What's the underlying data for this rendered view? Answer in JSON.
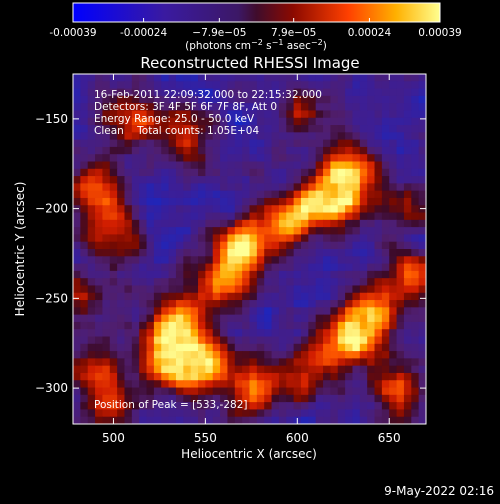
{
  "chart_data": {
    "type": "heatmap",
    "title": "Reconstructed RHESSI Image",
    "xlabel": "Heliocentric X (arcsec)",
    "ylabel": "Heliocentric Y (arcsec)",
    "xlim": [
      478,
      670
    ],
    "ylim": [
      -320,
      -125
    ],
    "x_ticks": [
      500,
      550,
      600,
      650
    ],
    "y_ticks": [
      -150,
      -200,
      -250,
      -300
    ],
    "colorbar": {
      "min": -0.00039,
      "max": 0.00039,
      "tick_values": [
        -0.00039,
        -0.00024,
        -7.9e-05,
        7.9e-05,
        0.00024,
        0.00039
      ],
      "tick_labels": [
        "-0.00039",
        "-0.00024",
        "−7.9e−05",
        "7.9e−05",
        "0.00024",
        "0.00039"
      ],
      "units_prefix": "(photons cm",
      "units_exp1": "−2",
      "units_mid1": " s",
      "units_exp2": "−1",
      "units_mid2": " asec",
      "units_exp3": "−2",
      "units_suffix": ")"
    },
    "annotations": {
      "time_range": "16-Feb-2011 22:09:32.000 to 22:15:32.000",
      "detectors": "Detectors: 3F 4F 5F 6F 7F 8F, Att 0",
      "energy": "Energy Range: 25.0 - 50.0 keV",
      "clean": "Clean    Total counts: 1.05E+04",
      "peak": "Position of Peak = [533,-282]"
    },
    "footer_timestamp": "9-May-2022 02:16",
    "emission_peaks": [
      {
        "x": 620,
        "y": -195,
        "level": 0.9
      },
      {
        "x": 628,
        "y": -180,
        "level": 0.75
      },
      {
        "x": 597,
        "y": -205,
        "level": 0.85
      },
      {
        "x": 572,
        "y": -222,
        "level": 0.9
      },
      {
        "x": 560,
        "y": -240,
        "level": 0.7
      },
      {
        "x": 535,
        "y": -262,
        "level": 0.8
      },
      {
        "x": 530,
        "y": -283,
        "level": 1.0
      },
      {
        "x": 550,
        "y": -288,
        "level": 0.85
      },
      {
        "x": 578,
        "y": -300,
        "level": 0.7
      },
      {
        "x": 628,
        "y": -272,
        "level": 0.85
      },
      {
        "x": 640,
        "y": -260,
        "level": 0.75
      },
      {
        "x": 660,
        "y": -238,
        "level": 0.6
      },
      {
        "x": 605,
        "y": -290,
        "level": 0.55
      },
      {
        "x": 490,
        "y": -190,
        "level": 0.65
      },
      {
        "x": 500,
        "y": -215,
        "level": 0.55
      },
      {
        "x": 510,
        "y": -150,
        "level": 0.6
      },
      {
        "x": 540,
        "y": -160,
        "level": 0.55
      },
      {
        "x": 490,
        "y": -290,
        "level": 0.55
      },
      {
        "x": 500,
        "y": -312,
        "level": 0.5
      },
      {
        "x": 655,
        "y": -300,
        "level": 0.55
      },
      {
        "x": 600,
        "y": -148,
        "level": 0.4
      },
      {
        "x": 662,
        "y": -198,
        "level": 0.45
      },
      {
        "x": 480,
        "y": -250,
        "level": 0.5
      }
    ],
    "grid": false,
    "colormap": "rhessi-diverging"
  }
}
